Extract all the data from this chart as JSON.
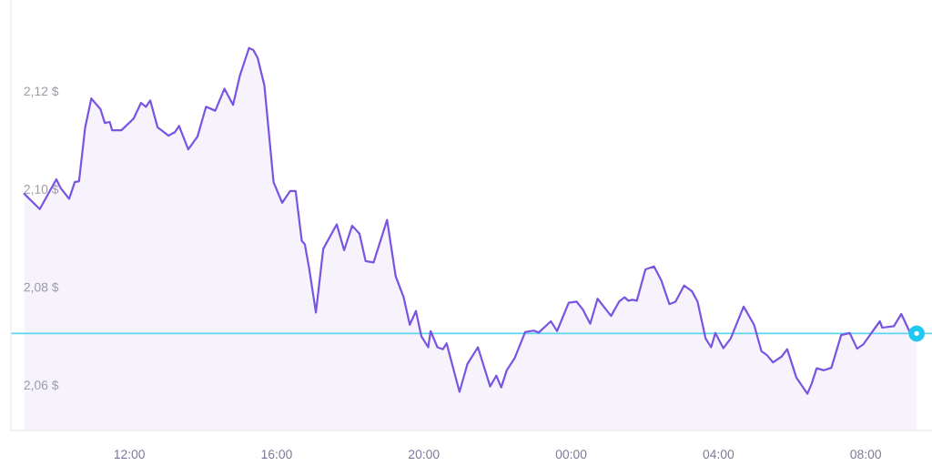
{
  "chart_data": {
    "type": "area",
    "x": [
      "2000-01-01T09:09",
      "2000-01-01T09:34",
      "2000-01-01T10:01",
      "2000-01-01T10:08",
      "2000-01-01T10:22",
      "2000-01-01T10:31",
      "2000-01-01T10:38",
      "2000-01-01T10:48",
      "2000-01-01T10:58",
      "2000-01-01T11:13",
      "2000-01-01T11:20",
      "2000-01-01T11:28",
      "2000-01-01T11:32",
      "2000-01-01T11:47",
      "2000-01-01T12:07",
      "2000-01-01T12:19",
      "2000-01-01T12:27",
      "2000-01-01T12:34",
      "2000-01-01T12:46",
      "2000-01-01T13:04",
      "2000-01-01T13:14",
      "2000-01-01T13:21",
      "2000-01-01T13:36",
      "2000-01-01T13:51",
      "2000-01-01T14:05",
      "2000-01-01T14:20",
      "2000-01-01T14:35",
      "2000-01-01T14:49",
      "2000-01-01T15:00",
      "2000-01-01T15:15",
      "2000-01-01T15:22",
      "2000-01-01T15:29",
      "2000-01-01T15:40",
      "2000-01-01T15:55",
      "2000-01-01T16:02",
      "2000-01-01T16:09",
      "2000-01-01T16:22",
      "2000-01-01T16:31",
      "2000-01-01T16:41",
      "2000-01-01T16:46",
      "2000-01-01T16:53",
      "2000-01-01T17:04",
      "2000-01-01T17:16",
      "2000-01-01T17:38",
      "2000-01-01T17:50",
      "2000-01-01T18:03",
      "2000-01-01T18:15",
      "2000-01-01T18:25",
      "2000-01-01T18:38",
      "2000-01-01T19:00",
      "2000-01-01T19:14",
      "2000-01-01T19:27",
      "2000-01-01T19:37",
      "2000-01-01T19:47",
      "2000-01-01T19:56",
      "2000-01-01T20:07",
      "2000-01-01T20:11",
      "2000-01-01T20:22",
      "2000-01-01T20:31",
      "2000-01-01T20:37",
      "2000-01-01T20:58",
      "2000-01-01T21:11",
      "2000-01-01T21:28",
      "2000-01-01T21:48",
      "2000-01-01T21:58",
      "2000-01-01T22:06",
      "2000-01-01T22:15",
      "2000-01-01T22:28",
      "2000-01-01T22:45",
      "2000-01-01T22:59",
      "2000-01-01T23:07",
      "2000-01-01T23:27",
      "2000-01-01T23:37",
      "2000-01-01T23:56",
      "2000-01-02T00:09",
      "2000-01-02T00:19",
      "2000-01-02T00:31",
      "2000-01-02T00:43",
      "2000-01-02T01:05",
      "2000-01-02T01:18",
      "2000-01-02T01:27",
      "2000-01-02T01:33",
      "2000-01-02T01:40",
      "2000-01-02T01:47",
      "2000-01-02T02:01",
      "2000-01-02T02:15",
      "2000-01-02T02:27",
      "2000-01-02T02:40",
      "2000-01-02T02:50",
      "2000-01-02T03:04",
      "2000-01-02T03:17",
      "2000-01-02T03:26",
      "2000-01-02T03:39",
      "2000-01-02T03:48",
      "2000-01-02T03:55",
      "2000-01-02T04:08",
      "2000-01-02T04:20",
      "2000-01-02T04:41",
      "2000-01-02T04:58",
      "2000-01-02T05:10",
      "2000-01-02T05:19",
      "2000-01-02T05:29",
      "2000-01-02T05:43",
      "2000-01-02T05:52",
      "2000-01-02T06:07",
      "2000-01-02T06:25",
      "2000-01-02T06:32",
      "2000-01-02T06:40",
      "2000-01-02T06:52",
      "2000-01-02T07:04",
      "2000-01-02T07:20",
      "2000-01-02T07:34",
      "2000-01-02T07:46",
      "2000-01-02T07:56",
      "2000-01-02T08:23",
      "2000-01-02T08:27",
      "2000-01-02T08:46",
      "2000-01-02T08:58",
      "2000-01-02T09:13",
      "2000-01-02T09:23"
    ],
    "series": [
      {
        "color": "#7a55e0",
        "values": [
          2.099,
          2.0959,
          2.102,
          2.1002,
          2.098,
          2.1014,
          2.1016,
          2.1126,
          2.1185,
          2.1163,
          2.1135,
          2.1137,
          2.112,
          2.112,
          2.1144,
          2.1176,
          2.1168,
          2.1181,
          2.1126,
          2.1109,
          2.1116,
          2.1129,
          2.1081,
          2.1107,
          2.1168,
          2.116,
          2.1205,
          2.1172,
          2.1231,
          2.1288,
          2.1284,
          2.1268,
          2.1212,
          2.1014,
          2.0993,
          2.0972,
          2.0996,
          2.0996,
          2.0894,
          2.0887,
          2.0838,
          2.0748,
          2.0878,
          2.0928,
          2.0875,
          2.0925,
          2.0909,
          2.0853,
          2.085,
          2.0937,
          2.0822,
          2.0779,
          2.0723,
          2.0751,
          2.0699,
          2.0677,
          2.071,
          2.0677,
          2.0673,
          2.0685,
          2.0586,
          2.0643,
          2.0677,
          2.0597,
          2.0619,
          2.0595,
          2.063,
          2.0655,
          2.0708,
          2.0711,
          2.0707,
          2.073,
          2.071,
          2.0768,
          2.077,
          2.0754,
          2.0725,
          2.0776,
          2.0741,
          2.077,
          2.0779,
          2.0772,
          2.0774,
          2.0772,
          2.0836,
          2.0842,
          2.0813,
          2.0765,
          2.077,
          2.0803,
          2.0791,
          2.077,
          2.0695,
          2.0677,
          2.0706,
          2.0675,
          2.0695,
          2.076,
          2.0723,
          2.0669,
          2.0661,
          2.0646,
          2.0658,
          2.0673,
          2.0615,
          2.0582,
          2.0603,
          2.0634,
          2.063,
          2.0635,
          2.0702,
          2.0706,
          2.0674,
          2.0683,
          2.073,
          2.0717,
          2.072,
          2.0745,
          2.0705,
          2.0705
        ]
      },
      {
        "type": "scatter",
        "x": [
          "2000-01-02T09:23"
        ],
        "values": [
          2.0705
        ],
        "color": "#1ec8f0",
        "marker": "circle"
      }
    ],
    "xlim": [
      "2000-01-01T08:47",
      "2000-01-02T09:48"
    ],
    "xticks": [
      {
        "value": "2000-01-01T12:00",
        "label": "12:00"
      },
      {
        "value": "2000-01-01T16:00",
        "label": "16:00"
      },
      {
        "value": "2000-01-01T20:00",
        "label": "20:00"
      },
      {
        "value": "2000-01-02T00:00",
        "label": "00:00"
      },
      {
        "value": "2000-01-02T04:00",
        "label": "04:00"
      },
      {
        "value": "2000-01-02T08:00",
        "label": "08:00"
      }
    ],
    "ylim": [
      2.0507,
      2.1386
    ],
    "yticks": [
      {
        "value": 2.06,
        "label": "2,06 $"
      },
      {
        "value": 2.08,
        "label": "2,08 $"
      },
      {
        "value": 2.1,
        "label": "2,10 $"
      },
      {
        "value": 2.12,
        "label": "2,12 $"
      }
    ],
    "ref_lines": [
      {
        "axis": "y",
        "value": 2.0705,
        "color": "#5dd5f5",
        "line_style": "solid"
      }
    ],
    "grid": false
  }
}
